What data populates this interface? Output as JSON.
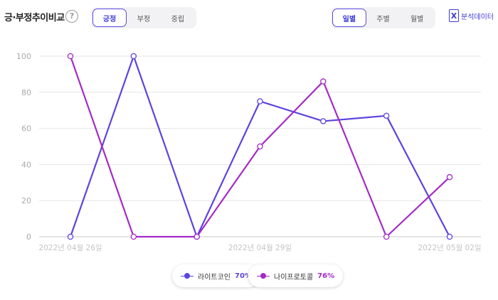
{
  "header": {
    "title": "긍·부정추이비교",
    "help": "?",
    "sentiment_tabs": [
      "긍정",
      "부정",
      "중립"
    ],
    "period_tabs": [
      "일별",
      "주별",
      "월별"
    ],
    "export_label": "분석데이터",
    "export_icon": "excel-icon"
  },
  "colors": {
    "series_a": "#5b45e0",
    "series_b": "#a52ac7",
    "accent": "#3b3bd6"
  },
  "chart_data": {
    "type": "line",
    "title": "",
    "xlabel": "",
    "ylabel": "",
    "ylim": [
      0,
      100
    ],
    "yticks": [
      0,
      20,
      40,
      60,
      80,
      100
    ],
    "x": [
      "2022-04-26",
      "2022-04-27",
      "2022-04-28",
      "2022-04-29",
      "2022-04-30",
      "2022-05-01",
      "2022-05-02"
    ],
    "x_tick_labels": [
      {
        "index": 0,
        "label": "2022년 04월 26일"
      },
      {
        "index": 3,
        "label": "2022년 04월 29일"
      },
      {
        "index": 6,
        "label": "2022년 05월 02일"
      }
    ],
    "series": [
      {
        "name": "라이트코인",
        "pct": "70%",
        "values": [
          0,
          100,
          0,
          75,
          64,
          67,
          0
        ]
      },
      {
        "name": "나이프로토콜",
        "pct": "76%",
        "values": [
          100,
          0,
          0,
          50,
          86,
          0,
          33
        ]
      }
    ],
    "grid": true,
    "legend": "bottom-center"
  }
}
